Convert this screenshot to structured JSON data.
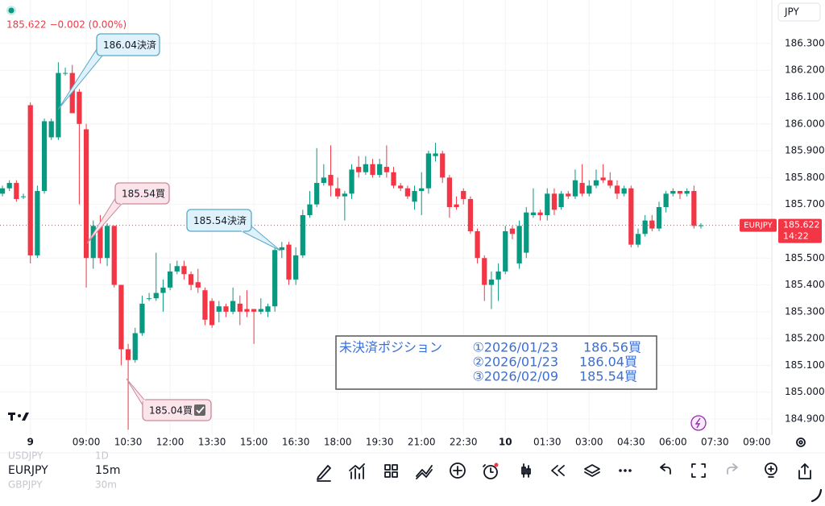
{
  "header": {
    "price_change": "185.622 −0.002 (0.00%)",
    "currency": "JPY"
  },
  "chart_data": {
    "type": "candlestick",
    "up_color": "#089981",
    "down_color": "#f23645",
    "candles": [
      [
        185.74,
        185.77,
        185.73,
        185.76
      ],
      [
        185.76,
        185.79,
        185.75,
        185.78
      ],
      [
        185.78,
        185.79,
        185.71,
        185.72
      ],
      [
        185.73,
        185.74,
        185.72,
        185.73
      ],
      [
        186.07,
        186.08,
        185.48,
        185.51
      ],
      [
        185.51,
        185.77,
        185.5,
        185.75
      ],
      [
        185.75,
        186.02,
        185.74,
        186.01
      ],
      [
        185.95,
        186.02,
        185.94,
        186.01
      ],
      [
        185.95,
        186.23,
        185.94,
        186.19
      ],
      [
        186.19,
        186.21,
        186.18,
        186.19
      ],
      [
        186.19,
        186.22,
        186.04,
        186.04
      ],
      [
        186.12,
        186.13,
        185.7,
        186.0
      ],
      [
        185.98,
        186.0,
        185.39,
        185.5
      ],
      [
        185.5,
        185.64,
        185.46,
        185.62
      ],
      [
        185.62,
        185.66,
        185.48,
        185.5
      ],
      [
        185.5,
        185.63,
        185.47,
        185.62
      ],
      [
        185.62,
        185.62,
        185.39,
        185.4
      ],
      [
        185.4,
        185.4,
        185.1,
        185.16
      ],
      [
        185.16,
        185.18,
        184.86,
        185.12
      ],
      [
        185.12,
        185.24,
        185.11,
        185.22
      ],
      [
        185.22,
        185.36,
        185.21,
        185.33
      ],
      [
        185.35,
        185.37,
        185.34,
        185.35
      ],
      [
        185.35,
        185.52,
        185.34,
        185.37
      ],
      [
        185.37,
        185.42,
        185.3,
        185.39
      ],
      [
        185.39,
        185.48,
        185.38,
        185.45
      ],
      [
        185.45,
        185.49,
        185.44,
        185.47
      ],
      [
        185.47,
        185.49,
        185.42,
        185.44
      ],
      [
        185.44,
        185.45,
        185.38,
        185.4
      ],
      [
        185.41,
        185.46,
        185.37,
        185.39
      ],
      [
        185.38,
        185.39,
        185.25,
        185.27
      ],
      [
        185.34,
        185.35,
        185.24,
        185.25
      ],
      [
        185.3,
        185.34,
        185.26,
        185.32
      ],
      [
        185.32,
        185.33,
        185.28,
        185.3
      ],
      [
        185.3,
        185.39,
        185.29,
        185.34
      ],
      [
        185.33,
        185.36,
        185.25,
        185.3
      ],
      [
        185.31,
        185.38,
        185.28,
        185.3
      ],
      [
        185.31,
        185.31,
        185.18,
        185.3
      ],
      [
        185.3,
        185.35,
        185.29,
        185.31
      ],
      [
        185.3,
        185.33,
        185.28,
        185.32
      ],
      [
        185.32,
        185.54,
        185.3,
        185.53
      ],
      [
        185.53,
        185.56,
        185.5,
        185.54
      ],
      [
        185.55,
        185.56,
        185.4,
        185.42
      ],
      [
        185.42,
        185.54,
        185.4,
        185.51
      ],
      [
        185.51,
        185.68,
        185.5,
        185.66
      ],
      [
        185.66,
        185.75,
        185.65,
        185.7
      ],
      [
        185.7,
        185.91,
        185.69,
        185.78
      ],
      [
        185.78,
        185.85,
        185.77,
        185.8
      ],
      [
        185.81,
        185.92,
        185.73,
        185.77
      ],
      [
        185.76,
        185.8,
        185.72,
        185.73
      ],
      [
        185.73,
        185.75,
        185.64,
        185.74
      ],
      [
        185.74,
        185.85,
        185.72,
        185.83
      ],
      [
        185.84,
        185.88,
        185.8,
        185.82
      ],
      [
        185.82,
        185.88,
        185.81,
        185.85
      ],
      [
        185.85,
        185.87,
        185.8,
        185.81
      ],
      [
        185.81,
        185.87,
        185.8,
        185.85
      ],
      [
        185.84,
        185.92,
        185.8,
        185.82
      ],
      [
        185.82,
        185.84,
        185.76,
        185.77
      ],
      [
        185.77,
        185.78,
        185.75,
        185.76
      ],
      [
        185.76,
        185.77,
        185.72,
        185.73
      ],
      [
        185.71,
        185.77,
        185.68,
        185.75
      ],
      [
        185.75,
        185.82,
        185.66,
        185.76
      ],
      [
        185.76,
        185.9,
        185.74,
        185.89
      ],
      [
        185.88,
        185.93,
        185.86,
        185.89
      ],
      [
        185.89,
        185.9,
        185.78,
        185.8
      ],
      [
        185.8,
        185.81,
        185.65,
        185.69
      ],
      [
        185.7,
        185.73,
        185.68,
        185.69
      ],
      [
        185.75,
        185.76,
        185.7,
        185.72
      ],
      [
        185.72,
        185.73,
        185.59,
        185.6
      ],
      [
        185.6,
        185.61,
        185.48,
        185.5
      ],
      [
        185.5,
        185.51,
        185.34,
        185.4
      ],
      [
        185.4,
        185.45,
        185.31,
        185.42
      ],
      [
        185.42,
        185.48,
        185.34,
        185.45
      ],
      [
        185.45,
        185.62,
        185.44,
        185.6
      ],
      [
        185.61,
        185.62,
        185.57,
        185.59
      ],
      [
        185.48,
        185.64,
        185.46,
        185.62
      ],
      [
        185.52,
        185.69,
        185.5,
        185.67
      ],
      [
        185.66,
        185.76,
        185.65,
        185.67
      ],
      [
        185.67,
        185.68,
        185.64,
        185.66
      ],
      [
        185.66,
        185.76,
        185.64,
        185.74
      ],
      [
        185.74,
        185.76,
        185.66,
        185.68
      ],
      [
        185.69,
        185.75,
        185.68,
        185.74
      ],
      [
        185.74,
        185.75,
        185.72,
        185.73
      ],
      [
        185.73,
        185.83,
        185.72,
        185.79
      ],
      [
        185.78,
        185.85,
        185.73,
        185.74
      ],
      [
        185.74,
        185.79,
        185.73,
        185.77
      ],
      [
        185.77,
        185.83,
        185.76,
        185.79
      ],
      [
        185.8,
        185.85,
        185.78,
        185.79
      ],
      [
        185.79,
        185.82,
        185.76,
        185.77
      ],
      [
        185.77,
        185.79,
        185.72,
        185.74
      ],
      [
        185.74,
        185.77,
        185.73,
        185.76
      ],
      [
        185.76,
        185.77,
        185.54,
        185.55
      ],
      [
        185.55,
        185.61,
        185.54,
        185.59
      ],
      [
        185.59,
        185.66,
        185.58,
        185.64
      ],
      [
        185.64,
        185.66,
        185.6,
        185.61
      ],
      [
        185.61,
        185.71,
        185.6,
        185.69
      ],
      [
        185.69,
        185.75,
        185.67,
        185.74
      ],
      [
        185.74,
        185.76,
        185.73,
        185.75
      ],
      [
        185.75,
        185.75,
        185.72,
        185.74
      ],
      [
        185.74,
        185.76,
        185.73,
        185.75
      ],
      [
        185.75,
        185.77,
        185.61,
        185.62
      ],
      [
        185.62,
        185.63,
        185.61,
        185.622
      ]
    ],
    "xlim": [
      -0.35,
      110.15
    ],
    "xticks": [
      {
        "value": 4,
        "label": "9"
      },
      {
        "value": 12,
        "label": "09:00"
      },
      {
        "value": 18,
        "label": "10:30"
      },
      {
        "value": 24,
        "label": "12:00"
      },
      {
        "value": 30,
        "label": "13:30"
      },
      {
        "value": 36,
        "label": "15:00"
      },
      {
        "value": 42,
        "label": "16:30"
      },
      {
        "value": 48,
        "label": "18:00"
      },
      {
        "value": 54,
        "label": "19:30"
      },
      {
        "value": 60,
        "label": "21:00"
      },
      {
        "value": 66,
        "label": "22:30"
      },
      {
        "value": 72,
        "label": "10"
      },
      {
        "value": 78,
        "label": "01:30"
      },
      {
        "value": 84,
        "label": "03:00"
      },
      {
        "value": 90,
        "label": "04:30"
      },
      {
        "value": 96,
        "label": "06:00"
      },
      {
        "value": 102,
        "label": "07:30"
      },
      {
        "value": 108,
        "label": "09:00"
      }
    ],
    "ylim": [
      184.84,
      186.462
    ],
    "yticks": [
      {
        "value": 186.3,
        "label": "186.300"
      },
      {
        "value": 186.2,
        "label": "186.200"
      },
      {
        "value": 186.1,
        "label": "186.100"
      },
      {
        "value": 186.0,
        "label": "186.000"
      },
      {
        "value": 185.9,
        "label": "185.900"
      },
      {
        "value": 185.8,
        "label": "185.800"
      },
      {
        "value": 185.7,
        "label": "185.700"
      },
      {
        "value": 185.5,
        "label": "185.500"
      },
      {
        "value": 185.4,
        "label": "185.400"
      },
      {
        "value": 185.3,
        "label": "185.300"
      },
      {
        "value": 185.2,
        "label": "185.200"
      },
      {
        "value": 185.1,
        "label": "185.100"
      },
      {
        "value": 185.0,
        "label": "185.000"
      },
      {
        "value": 184.9,
        "label": "184.900"
      }
    ],
    "last_price": {
      "symbol": "EURJPY",
      "value": 185.622,
      "label": "185.622",
      "countdown": "14:22"
    }
  },
  "annotations": [
    "186.04決済",
    "185.54買",
    "185.54決済",
    "185.04買"
  ],
  "positions_box": {
    "title": "未決済ポジション",
    "positions": [
      {
        "date": "①2026/01/23",
        "price": "186.56買"
      },
      {
        "date": "②2026/01/23",
        "price": "186.04買"
      },
      {
        "date": "③2026/02/09",
        "price": "185.54買"
      }
    ]
  },
  "watchlist": [
    {
      "symbol": "USDJPY",
      "interval": "1D"
    },
    {
      "symbol": "EURJPY",
      "interval": "15m"
    },
    {
      "symbol": "GBPJPY",
      "interval": "30m"
    }
  ]
}
